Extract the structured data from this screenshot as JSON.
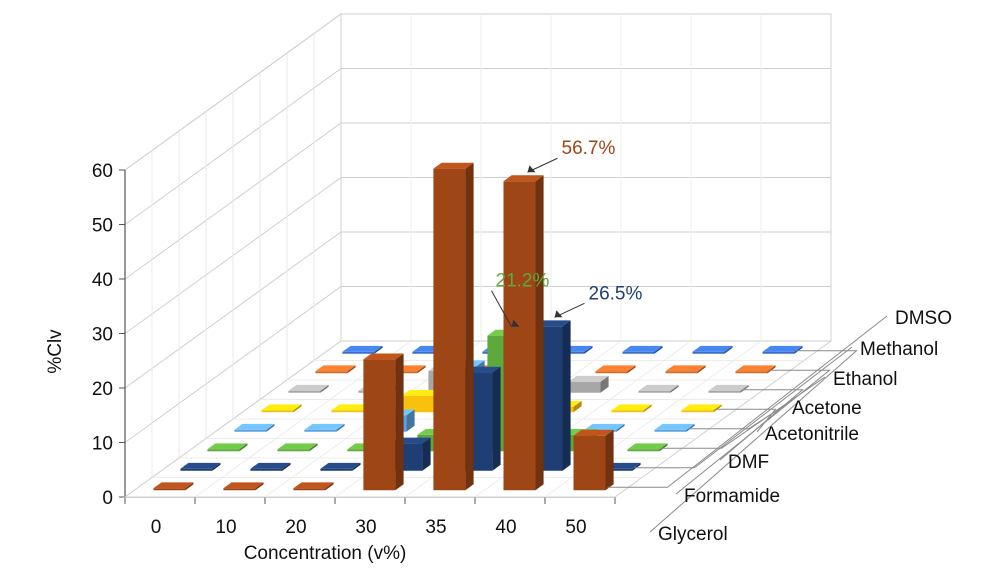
{
  "chart_data": {
    "type": "bar",
    "title": "",
    "xlabel": "Concentration (v%)",
    "ylabel": "%Clv",
    "ylim": [
      0,
      60
    ],
    "yticks": [
      "0",
      "10",
      "20",
      "30",
      "40",
      "50",
      "60"
    ],
    "categories": [
      "0",
      "10",
      "20",
      "30",
      "35",
      "40",
      "50"
    ],
    "grid": true,
    "legend_position": "right",
    "series": [
      {
        "name": "DMSO",
        "color": "#9e4616",
        "values": [
          0,
          0,
          0,
          24,
          59,
          56.7,
          10
        ]
      },
      {
        "name": "Methanol",
        "color": "#1f3e73",
        "values": [
          0,
          0,
          0,
          5,
          18,
          26.5,
          0
        ]
      },
      {
        "name": "Ethanol",
        "color": "#5ea83d",
        "values": [
          0,
          0,
          0,
          3,
          21.2,
          3,
          0
        ]
      },
      {
        "name": "Acetone",
        "color": "#5ea2df",
        "values": [
          0,
          0,
          3,
          12,
          13,
          0,
          0
        ]
      },
      {
        "name": "Acetonitrile",
        "color": "#f8c20c",
        "values": [
          0,
          0,
          3,
          6,
          1,
          0,
          0
        ]
      },
      {
        "name": "DMF",
        "color": "#a7a7a7",
        "values": [
          0,
          0,
          4,
          4,
          2,
          0,
          0
        ]
      },
      {
        "name": "Formamide",
        "color": "#cf6a26",
        "values": [
          0,
          0,
          0,
          0,
          0,
          0,
          0
        ]
      },
      {
        "name": "Glycerol",
        "color": "#3a6fc6",
        "values": [
          0,
          0,
          0,
          0,
          0,
          0,
          0
        ]
      }
    ],
    "annotations": [
      {
        "text": "56.7%",
        "series": "DMSO",
        "category": "40",
        "color": "#9e4616"
      },
      {
        "text": "26.5%",
        "series": "Methanol",
        "category": "40",
        "color": "#1f3e73"
      },
      {
        "text": "21.2%",
        "series": "Ethanol",
        "category": "35",
        "color": "#5ea83d"
      }
    ]
  }
}
